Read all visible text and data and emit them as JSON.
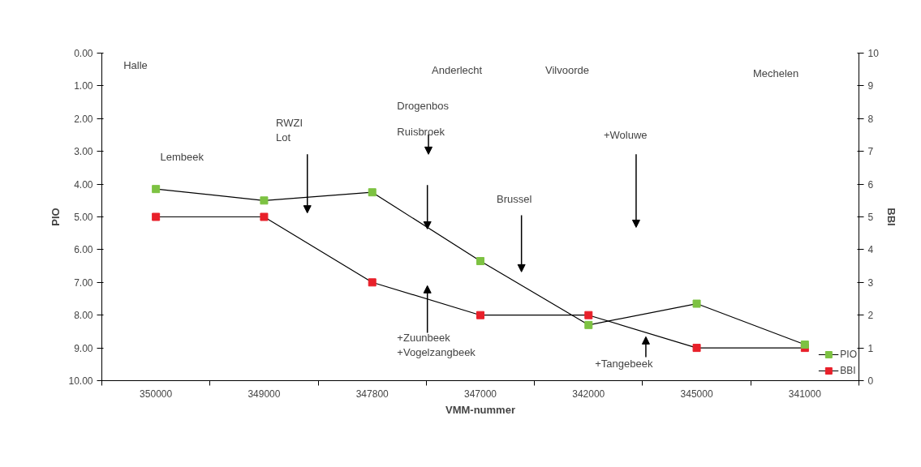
{
  "chart_data": {
    "type": "line",
    "xlabel": "VMM-nummer",
    "ylabel": "PIO",
    "y2label": "BBI",
    "categories": [
      "350000",
      "349000",
      "347800",
      "347000",
      "342000",
      "345000",
      "341000"
    ],
    "ylim": [
      10,
      0
    ],
    "yticks": [
      {
        "value": 0,
        "label": "0.00"
      },
      {
        "value": 1,
        "label": "1.00"
      },
      {
        "value": 2,
        "label": "2.00"
      },
      {
        "value": 3,
        "label": "3.00"
      },
      {
        "value": 4,
        "label": "4.00"
      },
      {
        "value": 5,
        "label": "5.00"
      },
      {
        "value": 6,
        "label": "6.00"
      },
      {
        "value": 7,
        "label": "7.00"
      },
      {
        "value": 8,
        "label": "8.00"
      },
      {
        "value": 9,
        "label": "9.00"
      },
      {
        "value": 10,
        "label": "10.00"
      }
    ],
    "y2lim": [
      0,
      10
    ],
    "y2ticks": [
      0,
      1,
      2,
      3,
      4,
      5,
      6,
      7,
      8,
      9,
      10
    ],
    "marker": "square",
    "legend": "bottom right",
    "grid": false,
    "series": [
      {
        "name": "PIO",
        "color": "#7dc242",
        "values": [
          4.15,
          4.5,
          4.25,
          6.35,
          8.3,
          7.65,
          8.9
        ]
      },
      {
        "name": "BBI",
        "color": "#e8202a",
        "axis": "y2",
        "values": [
          5,
          5,
          3,
          2,
          2,
          1,
          1
        ]
      }
    ],
    "annotations": [
      "Halle",
      "Lembeek",
      "RWZI\nLot",
      "Anderlecht",
      "Drogenbos",
      "Ruisbroek",
      "Brussel",
      "Vilvoorde",
      "+Woluwe",
      "Mechelen",
      "+Zuunbeek\n+Vogelzangbeek",
      "+Tangebeek"
    ]
  }
}
